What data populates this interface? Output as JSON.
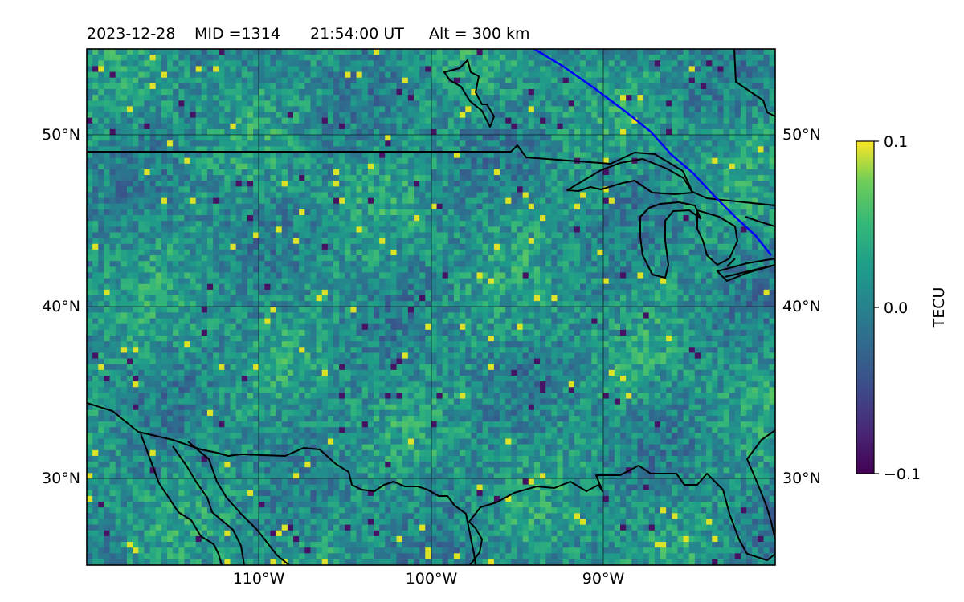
{
  "title": {
    "date": "2023-12-28",
    "mid": "MID =1314",
    "time": "21:54:00  UT",
    "alt": "Alt = 300 km"
  },
  "map": {
    "lat_labels": [
      "50°N",
      "40°N",
      "30°N"
    ],
    "lon_labels": [
      "110°W",
      "100°W",
      "90°W"
    ],
    "lat_values": [
      50,
      40,
      30
    ],
    "lon_values": [
      -110,
      -100,
      -90
    ],
    "lon_range": [
      -120,
      -80
    ],
    "lat_range": [
      25,
      55
    ],
    "colors": {
      "coastline": "#000000",
      "terminator": "#0000ff",
      "grid": "#000000"
    }
  },
  "colorbar": {
    "label": "TECU",
    "ticks": [
      "0.1",
      "0.0",
      "−0.1"
    ],
    "tick_values": [
      0.1,
      0.0,
      -0.1
    ],
    "colormap": "viridis"
  },
  "chart_data": {
    "type": "heatmap",
    "title": "2023-12-28  MID =1314    21:54:00  UT  Alt = 300 km",
    "colorbar_label": "TECU",
    "zlim": [
      -0.1,
      0.1
    ],
    "x_ticks": [
      "110°W",
      "100°W",
      "90°W"
    ],
    "y_ticks": [
      "50°N",
      "40°N",
      "30°N"
    ],
    "xlim": [
      -120,
      -80
    ],
    "ylim": [
      25,
      55
    ],
    "grid": true
  }
}
